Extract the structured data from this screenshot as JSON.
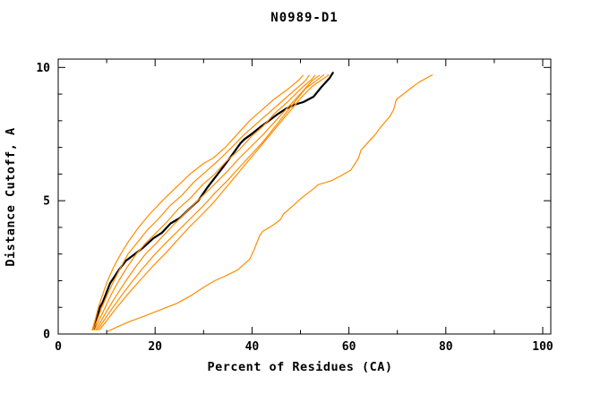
{
  "chart_data": {
    "type": "line",
    "title": "N0989-D1",
    "xlabel": "Percent of Residues (CA)",
    "ylabel": "Distance Cutoff, A",
    "xlim": [
      0,
      101.7
    ],
    "ylim": [
      0,
      10.3
    ],
    "x_ticks_major": [
      0,
      20,
      40,
      60,
      80,
      100
    ],
    "x_ticks_minor": [
      10,
      30,
      50,
      70,
      90
    ],
    "y_ticks_major": [
      0,
      5,
      10
    ],
    "y_ticks_minor": [
      1,
      2,
      3,
      4,
      6,
      7,
      8,
      9
    ],
    "grid": false,
    "legend": "none",
    "colors": {
      "reference": "#000000",
      "model": "#ff8c00",
      "frame": "#000000"
    },
    "series": [
      {
        "name": "reference-black",
        "role": "reference",
        "points": [
          [
            7.4,
            0.2
          ],
          [
            8.0,
            0.6
          ],
          [
            8.6,
            1.0
          ],
          [
            9.2,
            1.2
          ],
          [
            10.7,
            1.9
          ],
          [
            12.5,
            2.4
          ],
          [
            14.0,
            2.75
          ],
          [
            15.8,
            3.0
          ],
          [
            17.6,
            3.25
          ],
          [
            19.7,
            3.6
          ],
          [
            21.4,
            3.8
          ],
          [
            23.2,
            4.15
          ],
          [
            25.1,
            4.35
          ],
          [
            27.1,
            4.7
          ],
          [
            28.9,
            5.0
          ],
          [
            30.8,
            5.5
          ],
          [
            32.3,
            5.85
          ],
          [
            34.2,
            6.3
          ],
          [
            36.0,
            6.75
          ],
          [
            37.6,
            7.15
          ],
          [
            38.4,
            7.3
          ],
          [
            39.9,
            7.5
          ],
          [
            41.6,
            7.75
          ],
          [
            43.5,
            8.0
          ],
          [
            45.3,
            8.25
          ],
          [
            47.0,
            8.45
          ],
          [
            48.7,
            8.6
          ],
          [
            50.6,
            8.7
          ],
          [
            52.7,
            8.9
          ],
          [
            54.5,
            9.3
          ],
          [
            56.0,
            9.6
          ],
          [
            56.7,
            9.8
          ]
        ]
      },
      {
        "name": "model-1",
        "role": "model",
        "points": [
          [
            7.0,
            0.15
          ],
          [
            7.6,
            0.5
          ],
          [
            8.3,
            1.0
          ],
          [
            9.2,
            1.5
          ],
          [
            10.2,
            2.0
          ],
          [
            11.4,
            2.5
          ],
          [
            12.9,
            3.0
          ],
          [
            14.6,
            3.5
          ],
          [
            16.6,
            4.0
          ],
          [
            18.9,
            4.5
          ],
          [
            21.5,
            5.0
          ],
          [
            24.3,
            5.5
          ],
          [
            27.2,
            6.0
          ],
          [
            30.0,
            6.4
          ],
          [
            32.0,
            6.6
          ],
          [
            34.5,
            7.0
          ],
          [
            37.0,
            7.5
          ],
          [
            39.5,
            8.0
          ],
          [
            42.0,
            8.4
          ],
          [
            44.5,
            8.8
          ],
          [
            47.5,
            9.2
          ],
          [
            49.8,
            9.55
          ],
          [
            50.5,
            9.7
          ]
        ]
      },
      {
        "name": "model-2",
        "role": "model",
        "points": [
          [
            7.2,
            0.15
          ],
          [
            8.0,
            0.5
          ],
          [
            9.0,
            1.0
          ],
          [
            10.2,
            1.5
          ],
          [
            11.5,
            2.0
          ],
          [
            12.9,
            2.5
          ],
          [
            14.4,
            3.0
          ],
          [
            16.2,
            3.4
          ],
          [
            18.4,
            3.9
          ],
          [
            20.6,
            4.3
          ],
          [
            23.0,
            4.8
          ],
          [
            25.5,
            5.2
          ],
          [
            28.0,
            5.7
          ],
          [
            30.5,
            6.1
          ],
          [
            33.0,
            6.5
          ],
          [
            35.8,
            7.0
          ],
          [
            38.5,
            7.5
          ],
          [
            41.0,
            7.9
          ],
          [
            43.5,
            8.3
          ],
          [
            46.0,
            8.7
          ],
          [
            48.5,
            9.1
          ],
          [
            51.0,
            9.5
          ],
          [
            51.8,
            9.7
          ]
        ]
      },
      {
        "name": "model-3",
        "role": "model",
        "points": [
          [
            7.5,
            0.15
          ],
          [
            8.4,
            0.5
          ],
          [
            9.7,
            1.0
          ],
          [
            11.0,
            1.5
          ],
          [
            12.5,
            2.0
          ],
          [
            14.2,
            2.5
          ],
          [
            16.1,
            3.0
          ],
          [
            18.0,
            3.4
          ],
          [
            20.2,
            3.8
          ],
          [
            22.4,
            4.2
          ],
          [
            24.8,
            4.7
          ],
          [
            27.3,
            5.1
          ],
          [
            29.8,
            5.6
          ],
          [
            32.3,
            6.0
          ],
          [
            34.8,
            6.5
          ],
          [
            37.3,
            6.9
          ],
          [
            39.8,
            7.4
          ],
          [
            42.3,
            7.8
          ],
          [
            44.8,
            8.3
          ],
          [
            47.3,
            8.7
          ],
          [
            49.8,
            9.15
          ],
          [
            52.3,
            9.55
          ],
          [
            53.0,
            9.7
          ]
        ]
      },
      {
        "name": "model-4",
        "role": "model",
        "points": [
          [
            7.8,
            0.15
          ],
          [
            8.9,
            0.5
          ],
          [
            10.5,
            1.0
          ],
          [
            12.2,
            1.5
          ],
          [
            14.0,
            2.0
          ],
          [
            15.9,
            2.5
          ],
          [
            18.0,
            3.0
          ],
          [
            20.2,
            3.4
          ],
          [
            22.5,
            3.85
          ],
          [
            24.9,
            4.3
          ],
          [
            27.4,
            4.75
          ],
          [
            29.9,
            5.2
          ],
          [
            32.4,
            5.65
          ],
          [
            34.9,
            6.1
          ],
          [
            37.4,
            6.6
          ],
          [
            39.9,
            7.05
          ],
          [
            42.4,
            7.5
          ],
          [
            44.9,
            8.0
          ],
          [
            47.4,
            8.5
          ],
          [
            49.9,
            9.0
          ],
          [
            52.4,
            9.5
          ],
          [
            53.9,
            9.7
          ]
        ]
      },
      {
        "name": "model-5",
        "role": "model",
        "points": [
          [
            8.1,
            0.15
          ],
          [
            9.4,
            0.5
          ],
          [
            11.3,
            1.0
          ],
          [
            13.3,
            1.5
          ],
          [
            15.4,
            2.0
          ],
          [
            17.6,
            2.5
          ],
          [
            20.0,
            3.0
          ],
          [
            22.4,
            3.45
          ],
          [
            24.9,
            3.9
          ],
          [
            27.4,
            4.35
          ],
          [
            29.9,
            4.8
          ],
          [
            32.4,
            5.3
          ],
          [
            34.9,
            5.75
          ],
          [
            37.4,
            6.25
          ],
          [
            39.9,
            6.75
          ],
          [
            42.2,
            7.2
          ],
          [
            44.4,
            7.7
          ],
          [
            46.6,
            8.2
          ],
          [
            48.8,
            8.7
          ],
          [
            51.0,
            9.2
          ],
          [
            54.0,
            9.6
          ],
          [
            54.8,
            9.72
          ]
        ]
      },
      {
        "name": "model-6",
        "role": "model",
        "points": [
          [
            8.5,
            0.15
          ],
          [
            10.0,
            0.5
          ],
          [
            12.1,
            1.0
          ],
          [
            14.4,
            1.5
          ],
          [
            16.8,
            2.0
          ],
          [
            19.3,
            2.5
          ],
          [
            22.0,
            3.0
          ],
          [
            24.5,
            3.5
          ],
          [
            27.0,
            4.0
          ],
          [
            29.5,
            4.45
          ],
          [
            31.9,
            4.9
          ],
          [
            34.2,
            5.4
          ],
          [
            36.5,
            5.9
          ],
          [
            38.8,
            6.4
          ],
          [
            41.1,
            6.9
          ],
          [
            43.4,
            7.4
          ],
          [
            45.7,
            7.9
          ],
          [
            48.0,
            8.4
          ],
          [
            50.3,
            8.9
          ],
          [
            52.5,
            9.3
          ],
          [
            55.3,
            9.65
          ],
          [
            55.8,
            9.72
          ]
        ]
      },
      {
        "name": "model-7-outlier",
        "role": "model",
        "points": [
          [
            10.2,
            0.1
          ],
          [
            12.0,
            0.25
          ],
          [
            14.5,
            0.45
          ],
          [
            17.5,
            0.65
          ],
          [
            21.0,
            0.9
          ],
          [
            24.5,
            1.15
          ],
          [
            27.5,
            1.45
          ],
          [
            30.0,
            1.75
          ],
          [
            32.3,
            2.0
          ],
          [
            34.2,
            2.15
          ],
          [
            37.0,
            2.4
          ],
          [
            39.5,
            2.8
          ],
          [
            40.4,
            3.15
          ],
          [
            41.6,
            3.7
          ],
          [
            42.2,
            3.85
          ],
          [
            44.5,
            4.1
          ],
          [
            45.9,
            4.3
          ],
          [
            46.5,
            4.5
          ],
          [
            48.4,
            4.8
          ],
          [
            50.2,
            5.1
          ],
          [
            52.7,
            5.45
          ],
          [
            53.6,
            5.6
          ],
          [
            56.4,
            5.75
          ],
          [
            58.5,
            5.95
          ],
          [
            60.4,
            6.15
          ],
          [
            62.0,
            6.6
          ],
          [
            62.5,
            6.9
          ],
          [
            64.0,
            7.2
          ],
          [
            65.3,
            7.45
          ],
          [
            66.5,
            7.75
          ],
          [
            68.4,
            8.15
          ],
          [
            69.2,
            8.4
          ],
          [
            69.8,
            8.8
          ],
          [
            71.2,
            9.0
          ],
          [
            73.0,
            9.25
          ],
          [
            74.5,
            9.45
          ],
          [
            77.2,
            9.72
          ]
        ]
      }
    ]
  }
}
